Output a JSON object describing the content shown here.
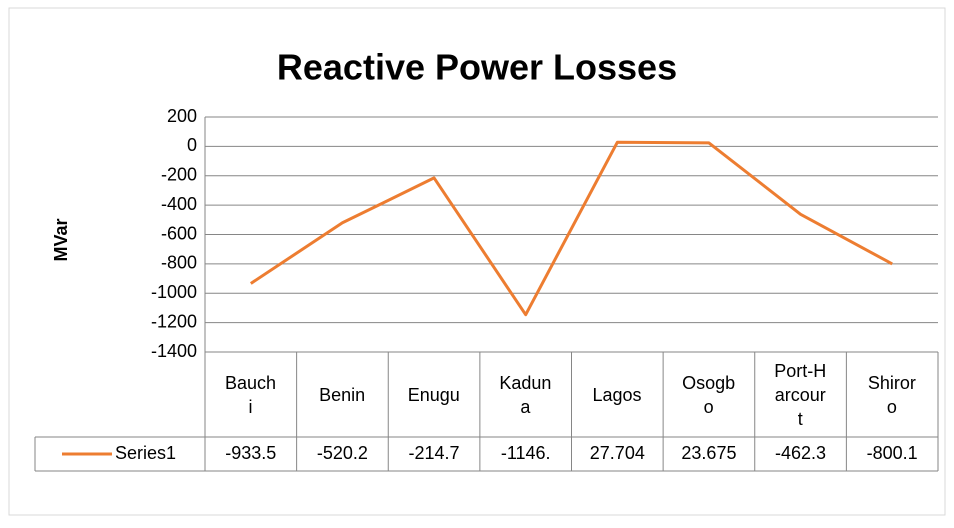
{
  "chart_data": {
    "type": "line",
    "title": "Reactive Power Losses",
    "y_label": "MVar",
    "categories": [
      "Bauchi",
      "Benin",
      "Enugu",
      "Kaduna",
      "Lagos",
      "Osogbo",
      "Port-Harcourt",
      "Shiroro"
    ],
    "series": [
      {
        "name": "Series1",
        "color": "#ED7D31",
        "values": [
          -933.5,
          -520.2,
          -214.7,
          -1146,
          27.704,
          23.675,
          -462.3,
          -800.1
        ],
        "value_labels": [
          "-933.5",
          "-520.2",
          "-214.7",
          "-1146.",
          "27.704",
          "23.675",
          "-462.3",
          "-800.1"
        ]
      }
    ],
    "ylim": [
      -1400,
      200
    ],
    "yticks": [
      -1400,
      -1200,
      -1000,
      -800,
      -600,
      -400,
      -200,
      0,
      200
    ],
    "grid": true
  }
}
